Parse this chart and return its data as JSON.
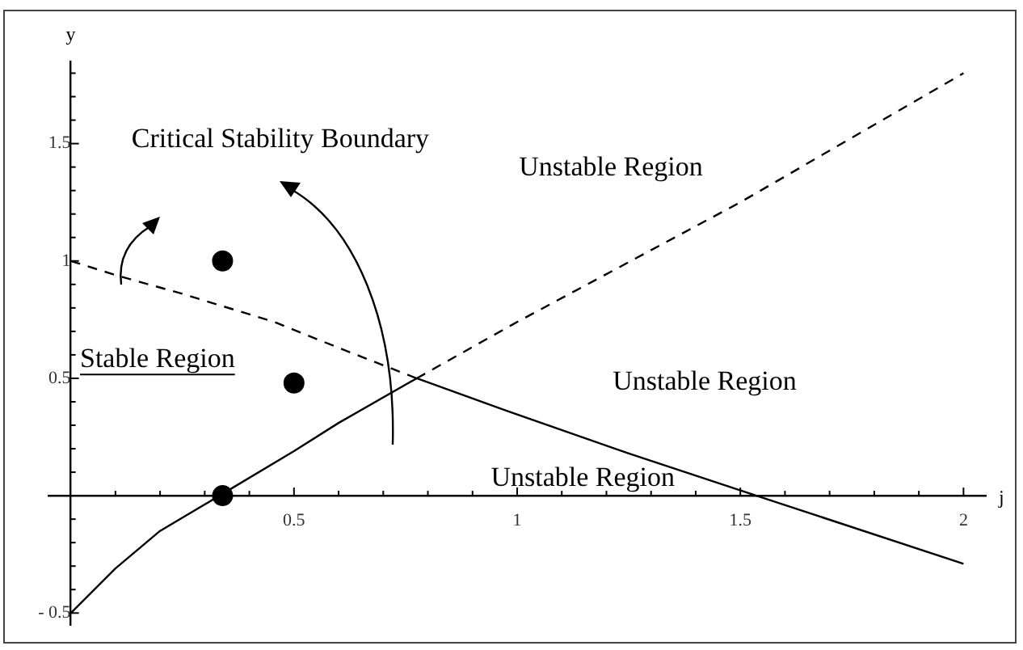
{
  "chart_data": {
    "type": "line",
    "xlabel": "j",
    "ylabel": "y",
    "xlim": [
      -0.05,
      2.05
    ],
    "ylim": [
      -0.55,
      1.85
    ],
    "xticks": [
      {
        "value": 0.1,
        "label": null
      },
      {
        "value": 0.2,
        "label": null
      },
      {
        "value": 0.3,
        "label": null
      },
      {
        "value": 0.4,
        "label": null
      },
      0.5,
      {
        "value": 0.6,
        "label": null
      },
      {
        "value": 0.7,
        "label": null
      },
      {
        "value": 0.8,
        "label": null
      },
      {
        "value": 0.9,
        "label": null
      },
      1,
      {
        "value": 1.1,
        "label": null
      },
      {
        "value": 1.2,
        "label": null
      },
      {
        "value": 1.3,
        "label": null
      },
      {
        "value": 1.4,
        "label": null
      },
      1.5,
      {
        "value": 1.6,
        "label": null
      },
      {
        "value": 1.7,
        "label": null
      },
      {
        "value": 1.8,
        "label": null
      },
      {
        "value": 1.9,
        "label": null
      },
      2
    ],
    "yticks": [
      {
        "value": -0.5,
        "label": "- 0.5"
      },
      {
        "value": -0.4,
        "label": null
      },
      {
        "value": -0.3,
        "label": null
      },
      {
        "value": -0.2,
        "label": null
      },
      {
        "value": -0.1,
        "label": null
      },
      {
        "value": 0.1,
        "label": null
      },
      {
        "value": 0.2,
        "label": null
      },
      {
        "value": 0.3,
        "label": null
      },
      {
        "value": 0.4,
        "label": null
      },
      0.5,
      {
        "value": 0.6,
        "label": null
      },
      {
        "value": 0.7,
        "label": null
      },
      {
        "value": 0.8,
        "label": null
      },
      {
        "value": 0.9,
        "label": null
      },
      1,
      {
        "value": 1.1,
        "label": null
      },
      {
        "value": 1.2,
        "label": null
      },
      {
        "value": 1.3,
        "label": null
      },
      {
        "value": 1.4,
        "label": null
      },
      1.5,
      {
        "value": 1.6,
        "label": null
      },
      {
        "value": 1.7,
        "label": null
      },
      {
        "value": 1.8,
        "label": null
      }
    ],
    "grid": false,
    "legend": false,
    "series": [
      {
        "color": "#000000",
        "line_style": "solid",
        "marker": "none",
        "x": [
          0,
          0.1,
          0.2,
          0.333,
          0.5,
          0.6,
          0.775
        ],
        "values": [
          -0.5,
          -0.31,
          -0.15,
          0,
          0.19,
          0.31,
          0.5
        ]
      },
      {
        "color": "#000000",
        "line_style": "dashed",
        "marker": "none",
        "x": [
          0.775,
          1,
          1.5,
          2
        ],
        "values": [
          0.5,
          0.74,
          1.25,
          1.8
        ]
      },
      {
        "color": "#000000",
        "line_style": "dashed",
        "marker": "none",
        "x": [
          0,
          0.1,
          0.25,
          0.456,
          0.6,
          0.775
        ],
        "values": [
          1,
          0.94,
          0.86,
          0.74,
          0.63,
          0.5
        ]
      },
      {
        "color": "#000000",
        "line_style": "solid",
        "marker": "none",
        "x": [
          0.775,
          0.964,
          1.25,
          1.536,
          2
        ],
        "values": [
          0.5,
          0.37,
          0.18,
          0,
          -0.29
        ]
      },
      {
        "type": "scatter",
        "color": "#000000",
        "marker": "circle",
        "x": [
          0.34,
          0.5,
          0.34
        ],
        "values": [
          1.0,
          0.48,
          0
        ]
      }
    ],
    "annotations": [
      "Critical Stability Boundary",
      "Unstable Region",
      "Stable Region",
      "Unstable Region",
      "Unstable Region"
    ]
  }
}
